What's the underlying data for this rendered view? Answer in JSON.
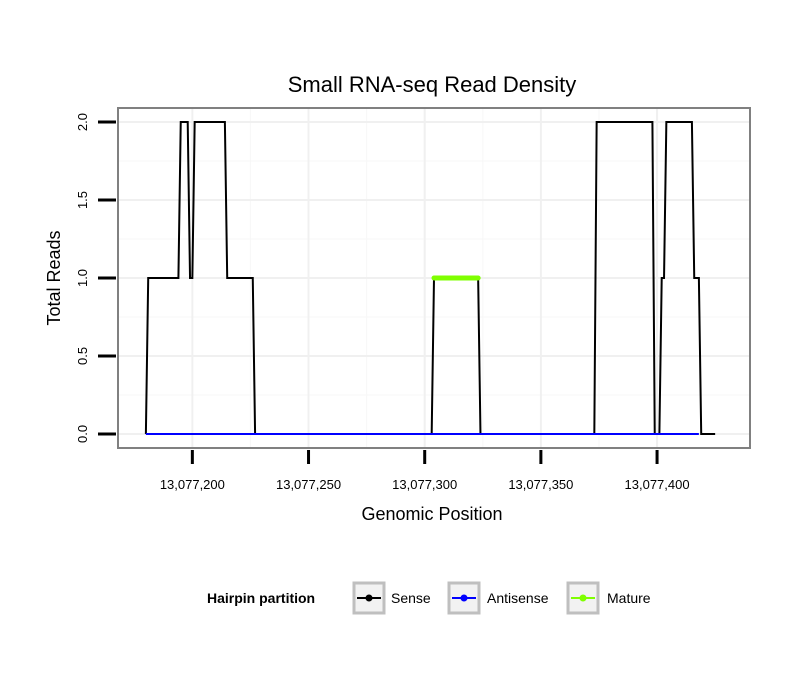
{
  "chart_data": {
    "type": "line",
    "title": "Small RNA-seq Read Density",
    "xlabel": "Genomic Position",
    "ylabel": "Total Reads",
    "xlim": [
      13077168,
      13077440
    ],
    "ylim": [
      -0.09,
      2.09
    ],
    "x_ticks": [
      13077200,
      13077250,
      13077300,
      13077350,
      13077400
    ],
    "x_tick_labels": [
      "13,077,200",
      "13,077,250",
      "13,077,300",
      "13,077,350",
      "13,077,400"
    ],
    "y_ticks": [
      0,
      0.5,
      1,
      1.5,
      2
    ],
    "y_tick_labels": [
      "0.0",
      "0.5",
      "1.0",
      "1.5",
      "2.0"
    ],
    "grid": true,
    "legend": {
      "title": "Hairpin partition",
      "position": "bottom",
      "entries": [
        "Sense",
        "Antisense",
        "Mature"
      ]
    },
    "series": [
      {
        "name": "Sense",
        "color": "#000000",
        "x": [
          13077180,
          13077181,
          13077194,
          13077195,
          13077198,
          13077199,
          13077200,
          13077201,
          13077214,
          13077215,
          13077226,
          13077227,
          13077303,
          13077304,
          13077323,
          13077324,
          13077373,
          13077374,
          13077398,
          13077399,
          13077401,
          13077402,
          13077403,
          13077404,
          13077415,
          13077416,
          13077418,
          13077419,
          13077425
        ],
        "values": [
          0,
          1,
          1,
          2,
          2,
          1,
          1,
          2,
          2,
          1,
          1,
          0,
          0,
          1,
          1,
          0,
          0,
          2,
          2,
          0,
          0,
          1,
          1,
          2,
          2,
          1,
          1,
          0,
          0
        ]
      },
      {
        "name": "Antisense",
        "color": "#0000ff",
        "x": [
          13077180,
          13077418
        ],
        "values": [
          0,
          0
        ]
      },
      {
        "name": "Mature",
        "color": "#7fff00",
        "x": [
          13077304,
          13077323
        ],
        "values": [
          1,
          1
        ]
      }
    ]
  }
}
